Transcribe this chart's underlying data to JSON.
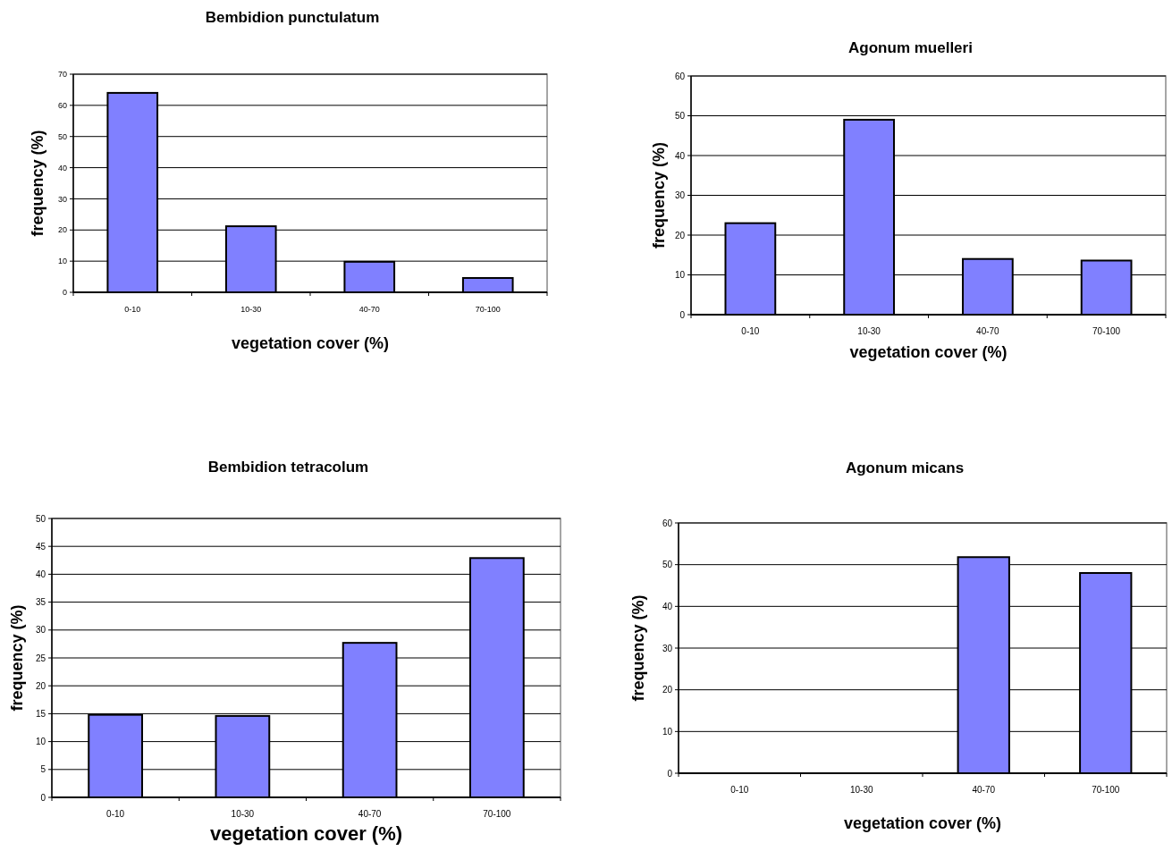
{
  "chart_data": [
    {
      "type": "bar",
      "title": "Bembidion punctulatum",
      "xlabel": "vegetation cover (%)",
      "ylabel": "frequency (%)",
      "categories": [
        "0-10",
        "10-30",
        "40-70",
        "70-100"
      ],
      "values": [
        64,
        21.2,
        9.8,
        4.6
      ],
      "color": "#8080ff",
      "ylim": [
        0,
        70
      ],
      "yticks": [
        0,
        10,
        20,
        30,
        40,
        50,
        60,
        70
      ],
      "grid": "y"
    },
    {
      "type": "bar",
      "title": "Agonum muelleri",
      "xlabel": "vegetation cover (%)",
      "ylabel": "frequency (%)",
      "categories": [
        "0-10",
        "10-30",
        "40-70",
        "70-100"
      ],
      "values": [
        23,
        49,
        14,
        13.6
      ],
      "color": "#8080ff",
      "ylim": [
        0,
        60
      ],
      "yticks": [
        0,
        10,
        20,
        30,
        40,
        50,
        60
      ],
      "grid": "y"
    },
    {
      "type": "bar",
      "title": "Bembidion tetracolum",
      "xlabel": "vegetation cover (%)",
      "ylabel": "frequency (%)",
      "categories": [
        "0-10",
        "10-30",
        "40-70",
        "70-100"
      ],
      "values": [
        14.8,
        14.6,
        27.7,
        42.9
      ],
      "color": "#8080ff",
      "ylim": [
        0,
        50
      ],
      "yticks": [
        0,
        5,
        10,
        15,
        20,
        25,
        30,
        35,
        40,
        45,
        50
      ],
      "grid": "y"
    },
    {
      "type": "bar",
      "title": "Agonum micans",
      "xlabel": "vegetation cover (%)",
      "ylabel": "frequency (%)",
      "categories": [
        "0-10",
        "10-30",
        "40-70",
        "70-100"
      ],
      "values": [
        0,
        0,
        51.8,
        48
      ],
      "color": "#8080ff",
      "ylim": [
        0,
        60
      ],
      "yticks": [
        0,
        10,
        20,
        30,
        40,
        50,
        60
      ],
      "grid": "y"
    }
  ]
}
